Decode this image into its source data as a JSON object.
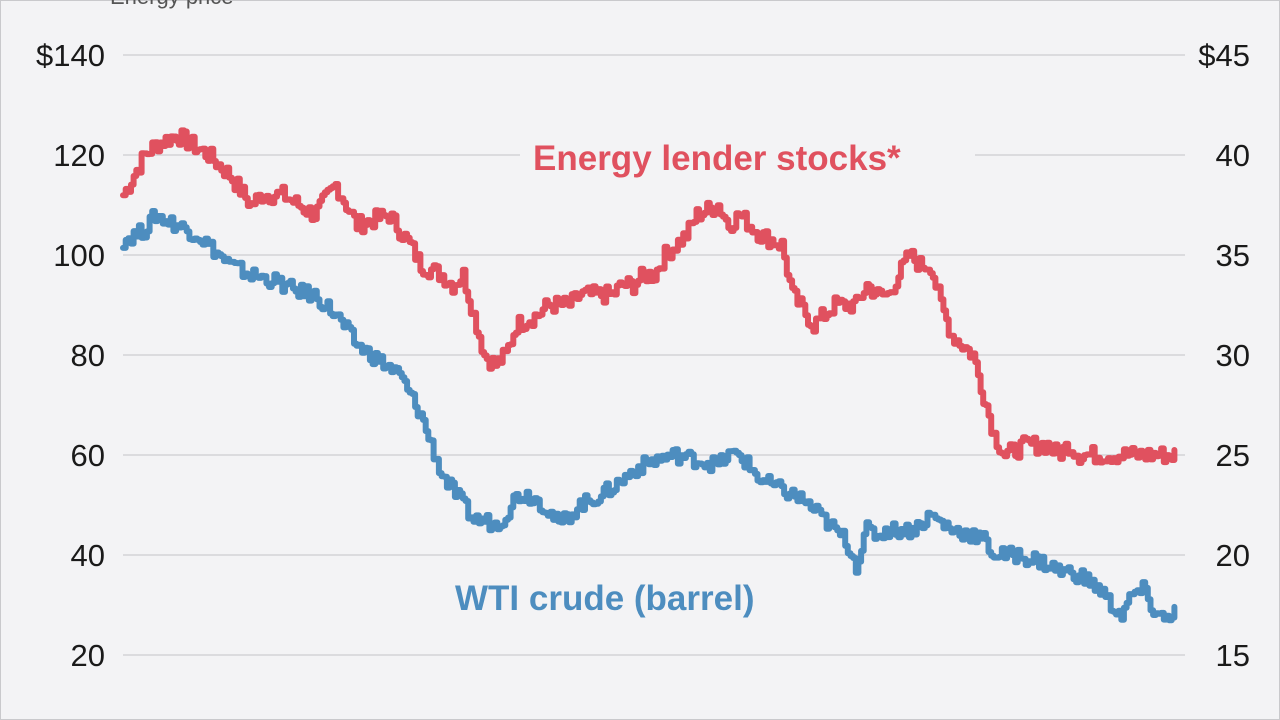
{
  "chart_data": {
    "type": "line",
    "title": "",
    "top_label": "Energy price",
    "left_axis": {
      "label": "",
      "range": [
        20,
        140
      ],
      "ticks": [
        {
          "value": 140,
          "label": "$140"
        },
        {
          "value": 120,
          "label": "120"
        },
        {
          "value": 100,
          "label": "100"
        },
        {
          "value": 80,
          "label": "80"
        },
        {
          "value": 60,
          "label": "60"
        },
        {
          "value": 40,
          "label": "40"
        },
        {
          "value": 20,
          "label": "20"
        }
      ]
    },
    "right_axis": {
      "label": "",
      "range": [
        15,
        45
      ],
      "ticks": [
        {
          "value": 45,
          "label": "$45"
        },
        {
          "value": 40,
          "label": "40"
        },
        {
          "value": 35,
          "label": "35"
        },
        {
          "value": 30,
          "label": "30"
        },
        {
          "value": 25,
          "label": "25"
        },
        {
          "value": 20,
          "label": "20"
        },
        {
          "value": 15,
          "label": "15"
        }
      ]
    },
    "x_range": [
      0,
      100
    ],
    "grid": true,
    "series": [
      {
        "name": "Energy lender stocks*",
        "axis": "right",
        "color": "#e0515f",
        "x": [
          0,
          2,
          3,
          5,
          8,
          10,
          12,
          13,
          15,
          18,
          20,
          22,
          25,
          27,
          28,
          30,
          31,
          32,
          33,
          34,
          35,
          36,
          37,
          39,
          40,
          42,
          43,
          44,
          46,
          47,
          48,
          49,
          50,
          51,
          52,
          53,
          54,
          56,
          57,
          58,
          60,
          62,
          63,
          65,
          67,
          68,
          69,
          70,
          71,
          72,
          73,
          74,
          75,
          76,
          77,
          78,
          79,
          80,
          81,
          82,
          83,
          85,
          87,
          88,
          89,
          90,
          91,
          92,
          93,
          94,
          95,
          96,
          97,
          98,
          99
        ],
        "values": [
          38,
          40,
          40.5,
          41,
          40,
          39,
          37.5,
          38,
          38,
          37,
          38.5,
          36.5,
          37,
          35.5,
          34.5,
          34,
          33.5,
          34,
          32,
          30,
          29.5,
          30,
          31.5,
          32,
          32.5,
          32.5,
          33,
          33,
          33,
          33.5,
          33.5,
          34,
          34,
          35,
          35.5,
          36,
          37,
          37.5,
          36.5,
          37,
          36,
          35.5,
          33,
          31.5,
          32.5,
          32.5,
          32.5,
          33.5,
          33,
          33,
          34,
          35,
          34.5,
          34.5,
          32.5,
          31,
          30.5,
          30,
          28,
          26,
          25,
          25.5,
          25.5,
          25,
          25.5,
          25,
          25,
          25,
          25,
          25,
          25,
          25,
          25,
          25,
          25
        ],
        "label": "Energy lender stocks*"
      },
      {
        "name": "WTI crude (barrel)",
        "axis": "left",
        "color": "#4d8dbf",
        "x": [
          0,
          2,
          3,
          5,
          7,
          8,
          10,
          12,
          14,
          16,
          18,
          20,
          22,
          24,
          26,
          28,
          30,
          32,
          33,
          34,
          35,
          36,
          37,
          38,
          39,
          40,
          41,
          43,
          45,
          47,
          48,
          50,
          52,
          54,
          56,
          57,
          58,
          60,
          62,
          64,
          66,
          68,
          69,
          70,
          71,
          72,
          74,
          75,
          76,
          78,
          80,
          81,
          82,
          84,
          86,
          88,
          90,
          92,
          93,
          94,
          95,
          96,
          97,
          98,
          99
        ],
        "values": [
          103,
          105,
          108,
          106,
          104,
          102,
          98,
          96,
          95,
          93,
          92,
          88,
          82,
          79,
          76,
          68,
          56,
          50,
          47,
          47,
          46,
          48,
          52,
          52,
          51,
          49,
          46,
          50,
          52,
          55,
          57,
          59,
          60,
          59,
          58,
          60,
          60,
          55,
          53,
          51,
          47,
          43,
          38,
          45,
          44,
          45,
          45,
          46,
          48,
          45,
          44,
          43,
          40,
          40,
          39,
          37,
          36,
          33,
          30,
          28,
          32,
          33,
          29,
          27,
          29
        ],
        "label": "WTI crude (barrel)"
      }
    ]
  }
}
